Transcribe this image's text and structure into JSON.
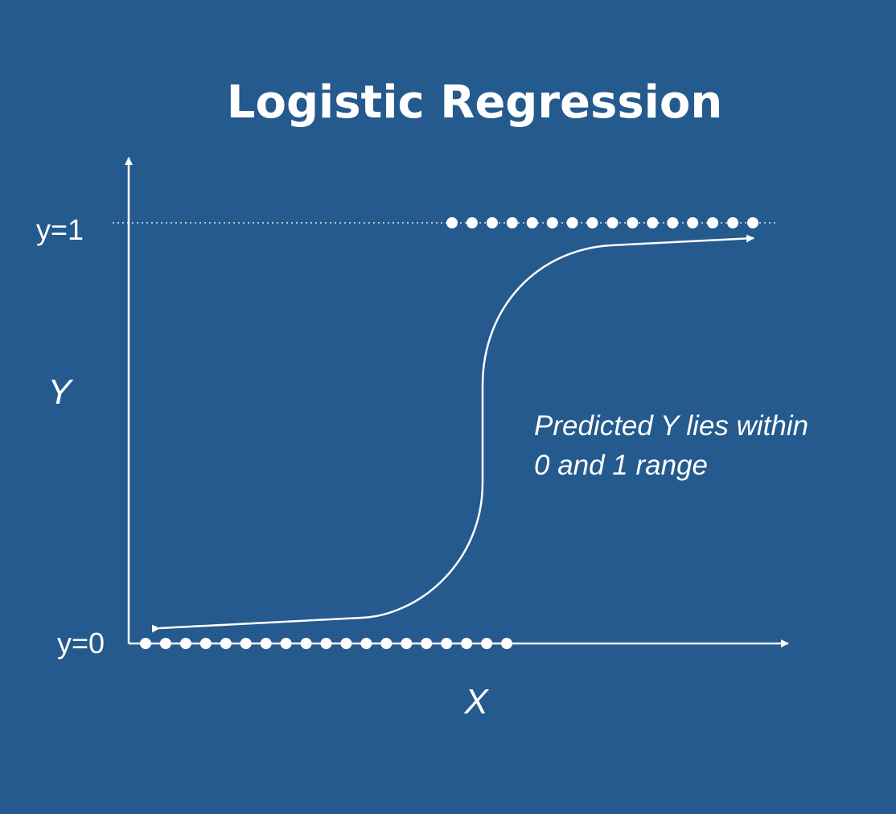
{
  "title": "Logistic Regression",
  "axes": {
    "x_label": "X",
    "y_label": "Y",
    "y_top_label": "y=1",
    "y_bottom_label": "y=0"
  },
  "annotation": {
    "line1": "Predicted Y lies within",
    "line2": "0 and 1 range"
  },
  "colors": {
    "background": "#245a8d",
    "foreground": "#ffffff",
    "guide": "#b9c8d8"
  },
  "points": {
    "y0_count": 19,
    "y1_count": 16
  }
}
